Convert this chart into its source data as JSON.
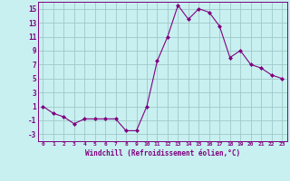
{
  "x": [
    0,
    1,
    2,
    3,
    4,
    5,
    6,
    7,
    8,
    9,
    10,
    11,
    12,
    13,
    14,
    15,
    16,
    17,
    18,
    19,
    20,
    21,
    22,
    23
  ],
  "y": [
    1,
    0,
    -0.5,
    -1.5,
    -0.8,
    -0.8,
    -0.8,
    -0.8,
    -2.5,
    -2.5,
    1,
    7.5,
    11,
    15.5,
    13.5,
    15,
    14.5,
    12.5,
    8,
    9,
    7,
    6.5,
    5.5,
    5
  ],
  "line_color": "#800080",
  "marker": "D",
  "marker_size": 2,
  "bg_color": "#c8f0f0",
  "grid_color": "#a0c8c8",
  "xlabel": "Windchill (Refroidissement éolien,°C)",
  "xlabel_color": "#800080",
  "tick_color": "#800080",
  "ylim": [
    -4,
    16
  ],
  "yticks": [
    -3,
    -1,
    1,
    3,
    5,
    7,
    9,
    11,
    13,
    15
  ],
  "xlim": [
    -0.5,
    23.5
  ]
}
